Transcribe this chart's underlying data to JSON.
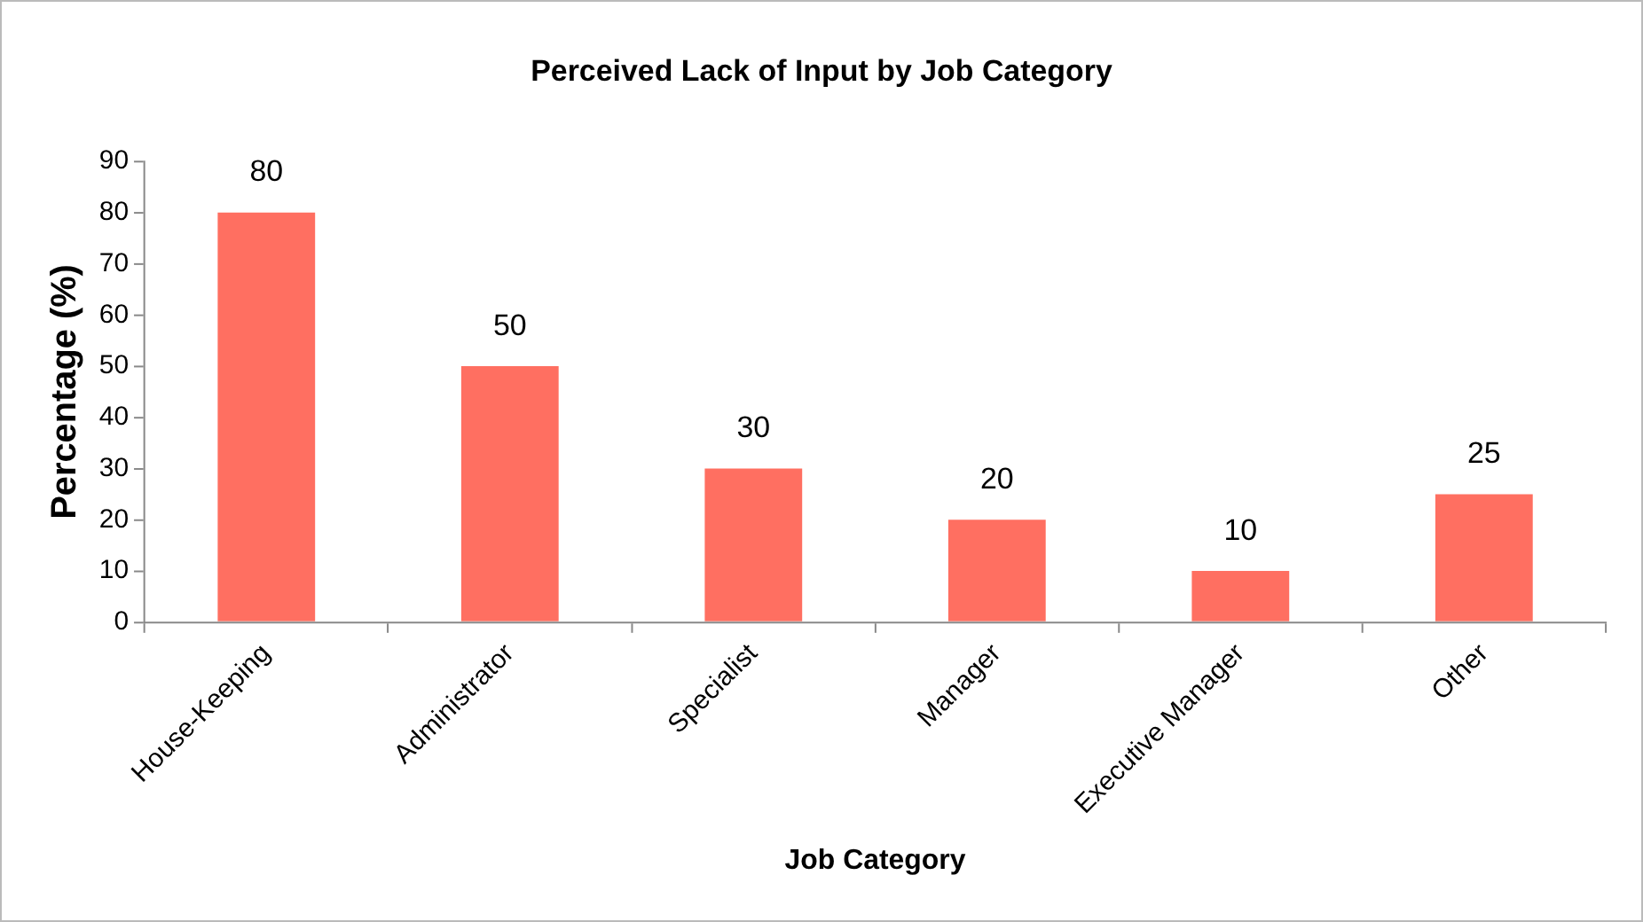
{
  "chart_data": {
    "type": "bar",
    "title": "Perceived Lack of Input by Job Category",
    "xlabel": "Job Category",
    "ylabel": "Percentage (%)",
    "categories": [
      "House-Keeping",
      "Administrator",
      "Specialist",
      "Manager",
      "Executive Manager",
      "Other"
    ],
    "values": [
      80,
      50,
      30,
      20,
      10,
      25
    ],
    "color": "#ff6f61",
    "ylim": [
      0,
      90
    ],
    "yticks": [
      0,
      10,
      20,
      30,
      40,
      50,
      60,
      70,
      80,
      90
    ],
    "grid": false,
    "legend": false,
    "data_labels": true
  }
}
